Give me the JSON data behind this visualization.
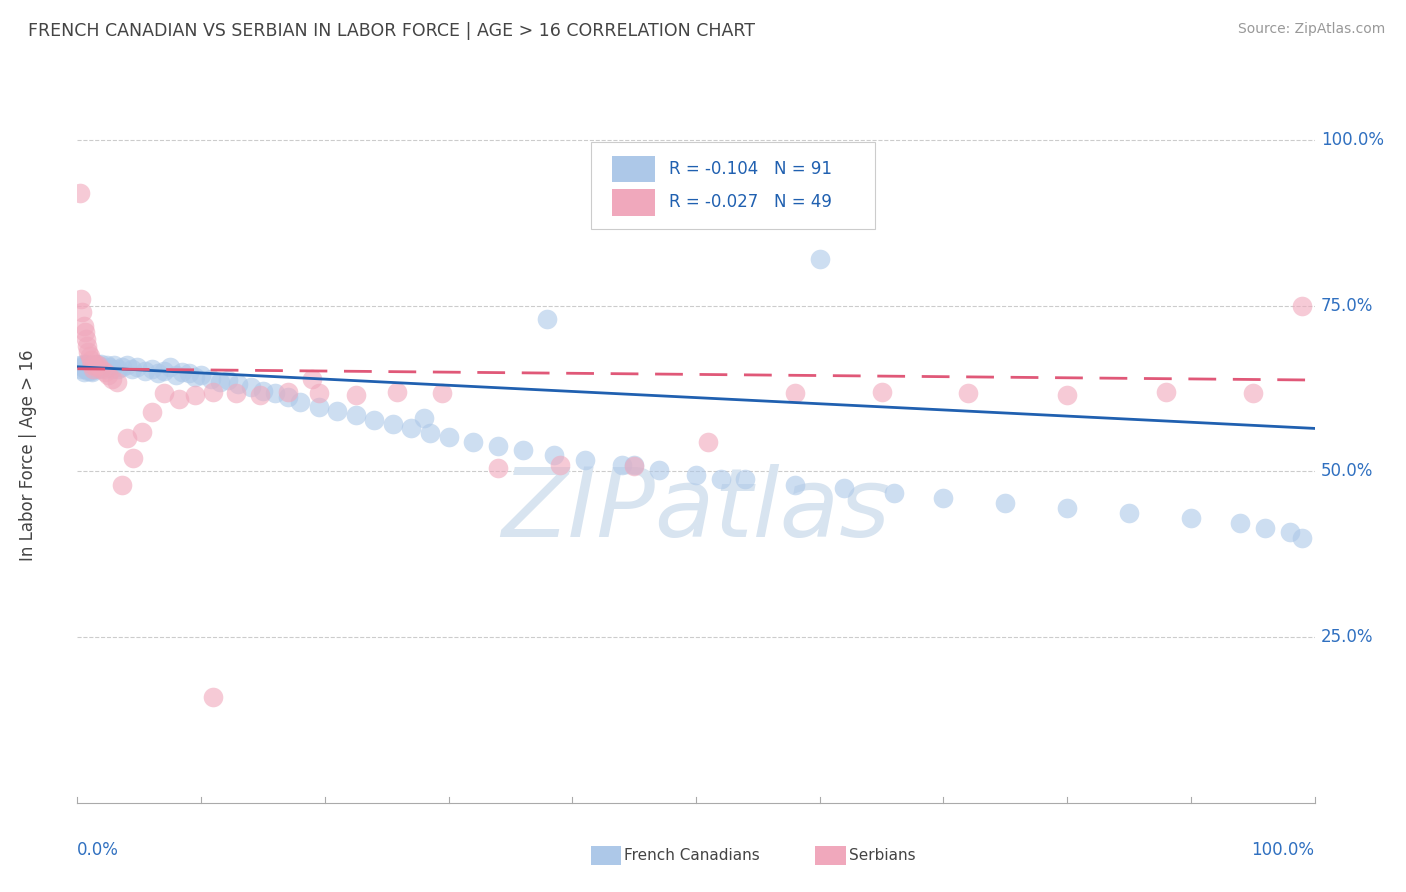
{
  "title": "FRENCH CANADIAN VS SERBIAN IN LABOR FORCE | AGE > 16 CORRELATION CHART",
  "source": "Source: ZipAtlas.com",
  "ylabel": "In Labor Force | Age > 16",
  "ytick_labels": [
    "25.0%",
    "50.0%",
    "75.0%",
    "100.0%"
  ],
  "ytick_values": [
    0.25,
    0.5,
    0.75,
    1.0
  ],
  "r1": -0.104,
  "n1": 91,
  "r2": -0.027,
  "n2": 49,
  "color_blue": "#adc8e8",
  "color_pink": "#f0a8bc",
  "line_color_blue": "#2060b0",
  "line_color_pink": "#e05878",
  "legend_text_color": "#2060b0",
  "watermark_color": "#d8e4f0",
  "background_color": "#ffffff",
  "french_x": [
    0.002,
    0.003,
    0.004,
    0.005,
    0.005,
    0.006,
    0.006,
    0.007,
    0.007,
    0.008,
    0.008,
    0.009,
    0.009,
    0.01,
    0.01,
    0.011,
    0.011,
    0.012,
    0.012,
    0.013,
    0.013,
    0.014,
    0.015,
    0.016,
    0.017,
    0.018,
    0.019,
    0.02,
    0.022,
    0.024,
    0.026,
    0.028,
    0.03,
    0.033,
    0.036,
    0.04,
    0.044,
    0.048,
    0.055,
    0.06,
    0.065,
    0.07,
    0.075,
    0.08,
    0.085,
    0.09,
    0.095,
    0.1,
    0.108,
    0.115,
    0.122,
    0.13,
    0.14,
    0.15,
    0.16,
    0.17,
    0.18,
    0.195,
    0.21,
    0.225,
    0.24,
    0.255,
    0.27,
    0.285,
    0.3,
    0.32,
    0.34,
    0.36,
    0.385,
    0.41,
    0.44,
    0.47,
    0.5,
    0.54,
    0.58,
    0.62,
    0.66,
    0.7,
    0.75,
    0.8,
    0.85,
    0.9,
    0.94,
    0.96,
    0.98,
    0.99,
    0.45,
    0.52,
    0.38,
    0.6,
    0.28
  ],
  "french_y": [
    0.66,
    0.655,
    0.658,
    0.662,
    0.65,
    0.66,
    0.655,
    0.658,
    0.662,
    0.655,
    0.66,
    0.652,
    0.658,
    0.655,
    0.66,
    0.652,
    0.655,
    0.658,
    0.65,
    0.655,
    0.66,
    0.655,
    0.658,
    0.662,
    0.655,
    0.658,
    0.662,
    0.658,
    0.655,
    0.66,
    0.658,
    0.655,
    0.66,
    0.655,
    0.658,
    0.66,
    0.655,
    0.658,
    0.652,
    0.655,
    0.648,
    0.652,
    0.658,
    0.645,
    0.65,
    0.648,
    0.642,
    0.645,
    0.64,
    0.635,
    0.638,
    0.632,
    0.628,
    0.622,
    0.618,
    0.612,
    0.605,
    0.598,
    0.592,
    0.585,
    0.578,
    0.572,
    0.565,
    0.558,
    0.552,
    0.545,
    0.538,
    0.532,
    0.525,
    0.518,
    0.51,
    0.502,
    0.495,
    0.488,
    0.48,
    0.475,
    0.468,
    0.46,
    0.452,
    0.445,
    0.438,
    0.43,
    0.422,
    0.415,
    0.408,
    0.4,
    0.51,
    0.488,
    0.73,
    0.82,
    0.58
  ],
  "serbian_x": [
    0.002,
    0.003,
    0.004,
    0.005,
    0.006,
    0.007,
    0.008,
    0.009,
    0.01,
    0.011,
    0.012,
    0.013,
    0.014,
    0.015,
    0.017,
    0.019,
    0.022,
    0.025,
    0.028,
    0.032,
    0.036,
    0.04,
    0.045,
    0.052,
    0.06,
    0.07,
    0.082,
    0.095,
    0.11,
    0.128,
    0.148,
    0.17,
    0.195,
    0.225,
    0.258,
    0.295,
    0.34,
    0.39,
    0.45,
    0.51,
    0.58,
    0.65,
    0.72,
    0.8,
    0.88,
    0.95,
    0.99,
    0.11,
    0.19
  ],
  "serbian_y": [
    0.92,
    0.76,
    0.74,
    0.72,
    0.71,
    0.7,
    0.69,
    0.68,
    0.675,
    0.668,
    0.66,
    0.655,
    0.662,
    0.658,
    0.66,
    0.655,
    0.65,
    0.645,
    0.64,
    0.635,
    0.48,
    0.55,
    0.52,
    0.56,
    0.59,
    0.618,
    0.61,
    0.615,
    0.62,
    0.618,
    0.615,
    0.62,
    0.618,
    0.615,
    0.62,
    0.618,
    0.505,
    0.51,
    0.508,
    0.545,
    0.618,
    0.62,
    0.618,
    0.615,
    0.62,
    0.618,
    0.75,
    0.16,
    0.64
  ],
  "xlim": [
    0.0,
    1.0
  ],
  "ylim": [
    0.0,
    1.05
  ],
  "blue_line_start": 0.658,
  "blue_line_end": 0.565,
  "pink_line_start": 0.655,
  "pink_line_end": 0.638
}
